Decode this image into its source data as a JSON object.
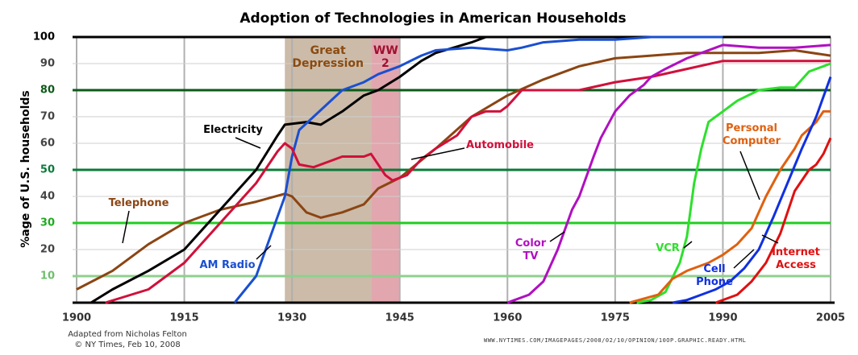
{
  "chart_data": {
    "type": "line",
    "title": "Adoption of Technologies in American Households",
    "y_label": "%age of U.S. households",
    "xlim": [
      1900,
      2005
    ],
    "xticks": [
      1900,
      1915,
      1930,
      1945,
      1960,
      1975,
      1990,
      2005
    ],
    "ylim": [
      0,
      100
    ],
    "yticks": [
      10,
      20,
      30,
      40,
      50,
      60,
      70,
      80,
      90,
      100
    ],
    "ytick_colors": [
      "#8fd08f",
      "#cfcfcf",
      "#22cc22",
      "#cfcfcf",
      "#0a7a3a",
      "#cfcfcf",
      "#cfcfcf",
      "#0d5a1a",
      "#cfcfcf",
      "#000000"
    ],
    "ytick_label_colors": [
      "#6cc06c",
      "#444444",
      "#1faa1f",
      "#444444",
      "#0a7a3a",
      "#444444",
      "#444444",
      "#0d5a1a",
      "#444444",
      "#000000"
    ],
    "grid": true,
    "periods": [
      {
        "label": "Great Depression",
        "start": 1929,
        "end": 1941,
        "color": "#cbbba8",
        "text_color": "#8b4a10"
      },
      {
        "label": "WW 2",
        "start": 1941,
        "end": 1945,
        "color": "#e2a6ae",
        "text_color": "#a01030"
      }
    ],
    "series": [
      {
        "name": "Telephone",
        "color": "#8b4513",
        "x": [
          1900,
          1905,
          1910,
          1915,
          1920,
          1925,
          1929,
          1930,
          1932,
          1934,
          1937,
          1940,
          1942,
          1945,
          1950,
          1955,
          1960,
          1965,
          1970,
          1975,
          1980,
          1985,
          1990,
          1995,
          2000,
          2005
        ],
        "values": [
          5,
          12,
          22,
          30,
          35,
          38,
          41,
          40,
          34,
          32,
          34,
          37,
          43,
          47,
          58,
          70,
          78,
          84,
          89,
          92,
          93,
          94,
          94,
          94,
          95,
          93
        ]
      },
      {
        "name": "Electricity",
        "color": "#000000",
        "x": [
          1902,
          1905,
          1910,
          1915,
          1920,
          1925,
          1928,
          1929,
          1932,
          1934,
          1937,
          1940,
          1942,
          1945,
          1948,
          1950,
          1955,
          1957,
          1958
        ],
        "values": [
          0,
          5,
          12,
          20,
          35,
          50,
          63,
          67,
          68,
          67,
          72,
          78,
          80,
          85,
          91,
          94,
          98,
          100,
          100
        ]
      },
      {
        "name": "AM Radio",
        "color": "#1a4fd0",
        "x": [
          1922,
          1925,
          1927,
          1929,
          1930,
          1931,
          1933,
          1935,
          1937,
          1940,
          1942,
          1945,
          1948,
          1950,
          1955,
          1960,
          1962,
          1965,
          1970,
          1975,
          1980,
          1990
        ],
        "values": [
          0,
          10,
          25,
          40,
          55,
          65,
          70,
          75,
          80,
          83,
          86,
          89,
          93,
          95,
          96,
          95,
          96,
          98,
          99,
          99,
          100,
          100
        ]
      },
      {
        "name": "Automobile",
        "color": "#d0103a",
        "x": [
          1904,
          1910,
          1915,
          1920,
          1925,
          1928,
          1929,
          1930,
          1931,
          1933,
          1935,
          1937,
          1940,
          1941,
          1943,
          1944,
          1946,
          1948,
          1950,
          1953,
          1955,
          1957,
          1959,
          1960,
          1962,
          1965,
          1970,
          1975,
          1980,
          1985,
          1990,
          1995,
          2000,
          2005
        ],
        "values": [
          0,
          5,
          15,
          30,
          45,
          57,
          60,
          58,
          52,
          51,
          53,
          55,
          55,
          56,
          48,
          46,
          48,
          54,
          58,
          63,
          70,
          72,
          72,
          74,
          80,
          80,
          80,
          83,
          85,
          88,
          91,
          91,
          91,
          91
        ]
      },
      {
        "name": "Color TV",
        "color": "#b010c0",
        "x": [
          1960,
          1963,
          1965,
          1967,
          1969,
          1970,
          1972,
          1973,
          1975,
          1977,
          1979,
          1980,
          1982,
          1985,
          1990,
          1995,
          2000,
          2005
        ],
        "values": [
          0,
          3,
          8,
          20,
          35,
          40,
          55,
          62,
          72,
          78,
          82,
          85,
          88,
          92,
          97,
          96,
          96,
          97
        ]
      },
      {
        "name": "VCR",
        "color": "#2de02d",
        "x": [
          1978,
          1980,
          1982,
          1984,
          1985,
          1986,
          1987,
          1988,
          1990,
          1992,
          1995,
          1998,
          2000,
          2002,
          2004,
          2005
        ],
        "values": [
          0,
          1,
          4,
          15,
          25,
          45,
          58,
          68,
          72,
          76,
          80,
          81,
          81,
          87,
          89,
          90
        ]
      },
      {
        "name": "Personal Computer",
        "color": "#e06010",
        "x": [
          1977,
          1981,
          1983,
          1985,
          1988,
          1990,
          1992,
          1994,
          1996,
          1998,
          2000,
          2001,
          2003,
          2004,
          2005
        ],
        "values": [
          0,
          3,
          9,
          12,
          15,
          18,
          22,
          28,
          40,
          50,
          58,
          63,
          68,
          72,
          72
        ]
      },
      {
        "name": "Cell Phone",
        "color": "#1030e0",
        "x": [
          1983,
          1985,
          1987,
          1989,
          1991,
          1993,
          1995,
          1997,
          1999,
          2001,
          2003,
          2005
        ],
        "values": [
          0,
          1,
          3,
          5,
          8,
          13,
          20,
          32,
          45,
          58,
          70,
          85
        ]
      },
      {
        "name": "Internet Access",
        "color": "#e01010",
        "x": [
          1989,
          1992,
          1994,
          1996,
          1998,
          2000,
          2002,
          2003,
          2004,
          2005
        ],
        "values": [
          0,
          3,
          8,
          15,
          26,
          42,
          50,
          52,
          56,
          62
        ]
      }
    ],
    "source_lines": [
      "Adapted from Nicholas Felton",
      "© NY Times, Feb 10, 2008"
    ],
    "url": "WWW.NYTIMES.COM/IMAGEPAGES/2008/02/10/OPINION/10OP.GRAPHIC.READY.HTML"
  }
}
